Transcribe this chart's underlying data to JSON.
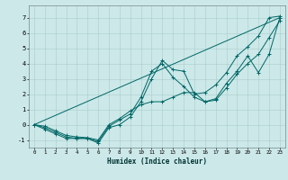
{
  "xlabel": "Humidex (Indice chaleur)",
  "bg_color": "#cce8e8",
  "grid_color": "#aacccc",
  "line_color": "#006666",
  "xlim": [
    -0.5,
    23.5
  ],
  "ylim": [
    -1.5,
    7.8
  ],
  "yticks": [
    -1,
    0,
    1,
    2,
    3,
    4,
    5,
    6,
    7
  ],
  "xticks": [
    0,
    1,
    2,
    3,
    4,
    5,
    6,
    7,
    8,
    9,
    10,
    11,
    12,
    13,
    14,
    15,
    16,
    17,
    18,
    19,
    20,
    21,
    22,
    23
  ],
  "series": [
    {
      "x": [
        0,
        23
      ],
      "y": [
        0,
        7.0
      ],
      "marker": false
    },
    {
      "x": [
        0,
        1,
        2,
        3,
        4,
        5,
        6,
        7,
        8,
        9,
        10,
        11,
        12,
        13,
        14,
        15,
        16,
        17,
        18,
        19,
        20,
        21,
        22,
        23
      ],
      "y": [
        0,
        -0.3,
        -0.6,
        -0.9,
        -0.9,
        -0.9,
        -1.2,
        -0.2,
        0.0,
        0.5,
        1.5,
        3.0,
        4.2,
        3.6,
        3.5,
        2.0,
        2.1,
        2.6,
        3.4,
        4.5,
        5.1,
        5.8,
        7.0,
        7.1
      ],
      "marker": true
    },
    {
      "x": [
        0,
        1,
        2,
        3,
        4,
        5,
        6,
        7,
        8,
        9,
        10,
        11,
        12,
        13,
        14,
        15,
        16,
        17,
        18,
        19,
        20,
        21,
        22,
        23
      ],
      "y": [
        0,
        -0.2,
        -0.5,
        -0.8,
        -0.9,
        -0.9,
        -1.1,
        -0.1,
        0.3,
        0.7,
        1.8,
        3.5,
        4.0,
        3.1,
        2.5,
        1.8,
        1.5,
        1.6,
        2.4,
        3.3,
        4.0,
        4.6,
        5.7,
        6.8
      ],
      "marker": true
    },
    {
      "x": [
        0,
        1,
        2,
        3,
        4,
        5,
        6,
        7,
        8,
        9,
        10,
        11,
        12,
        13,
        14,
        15,
        16,
        17,
        18,
        19,
        20,
        21,
        22,
        23
      ],
      "y": [
        0,
        -0.1,
        -0.4,
        -0.7,
        -0.8,
        -0.85,
        -1.0,
        0.0,
        0.4,
        0.9,
        1.3,
        1.5,
        1.5,
        1.8,
        2.1,
        2.1,
        1.5,
        1.7,
        2.7,
        3.5,
        4.5,
        3.4,
        4.6,
        7.0
      ],
      "marker": true
    }
  ]
}
